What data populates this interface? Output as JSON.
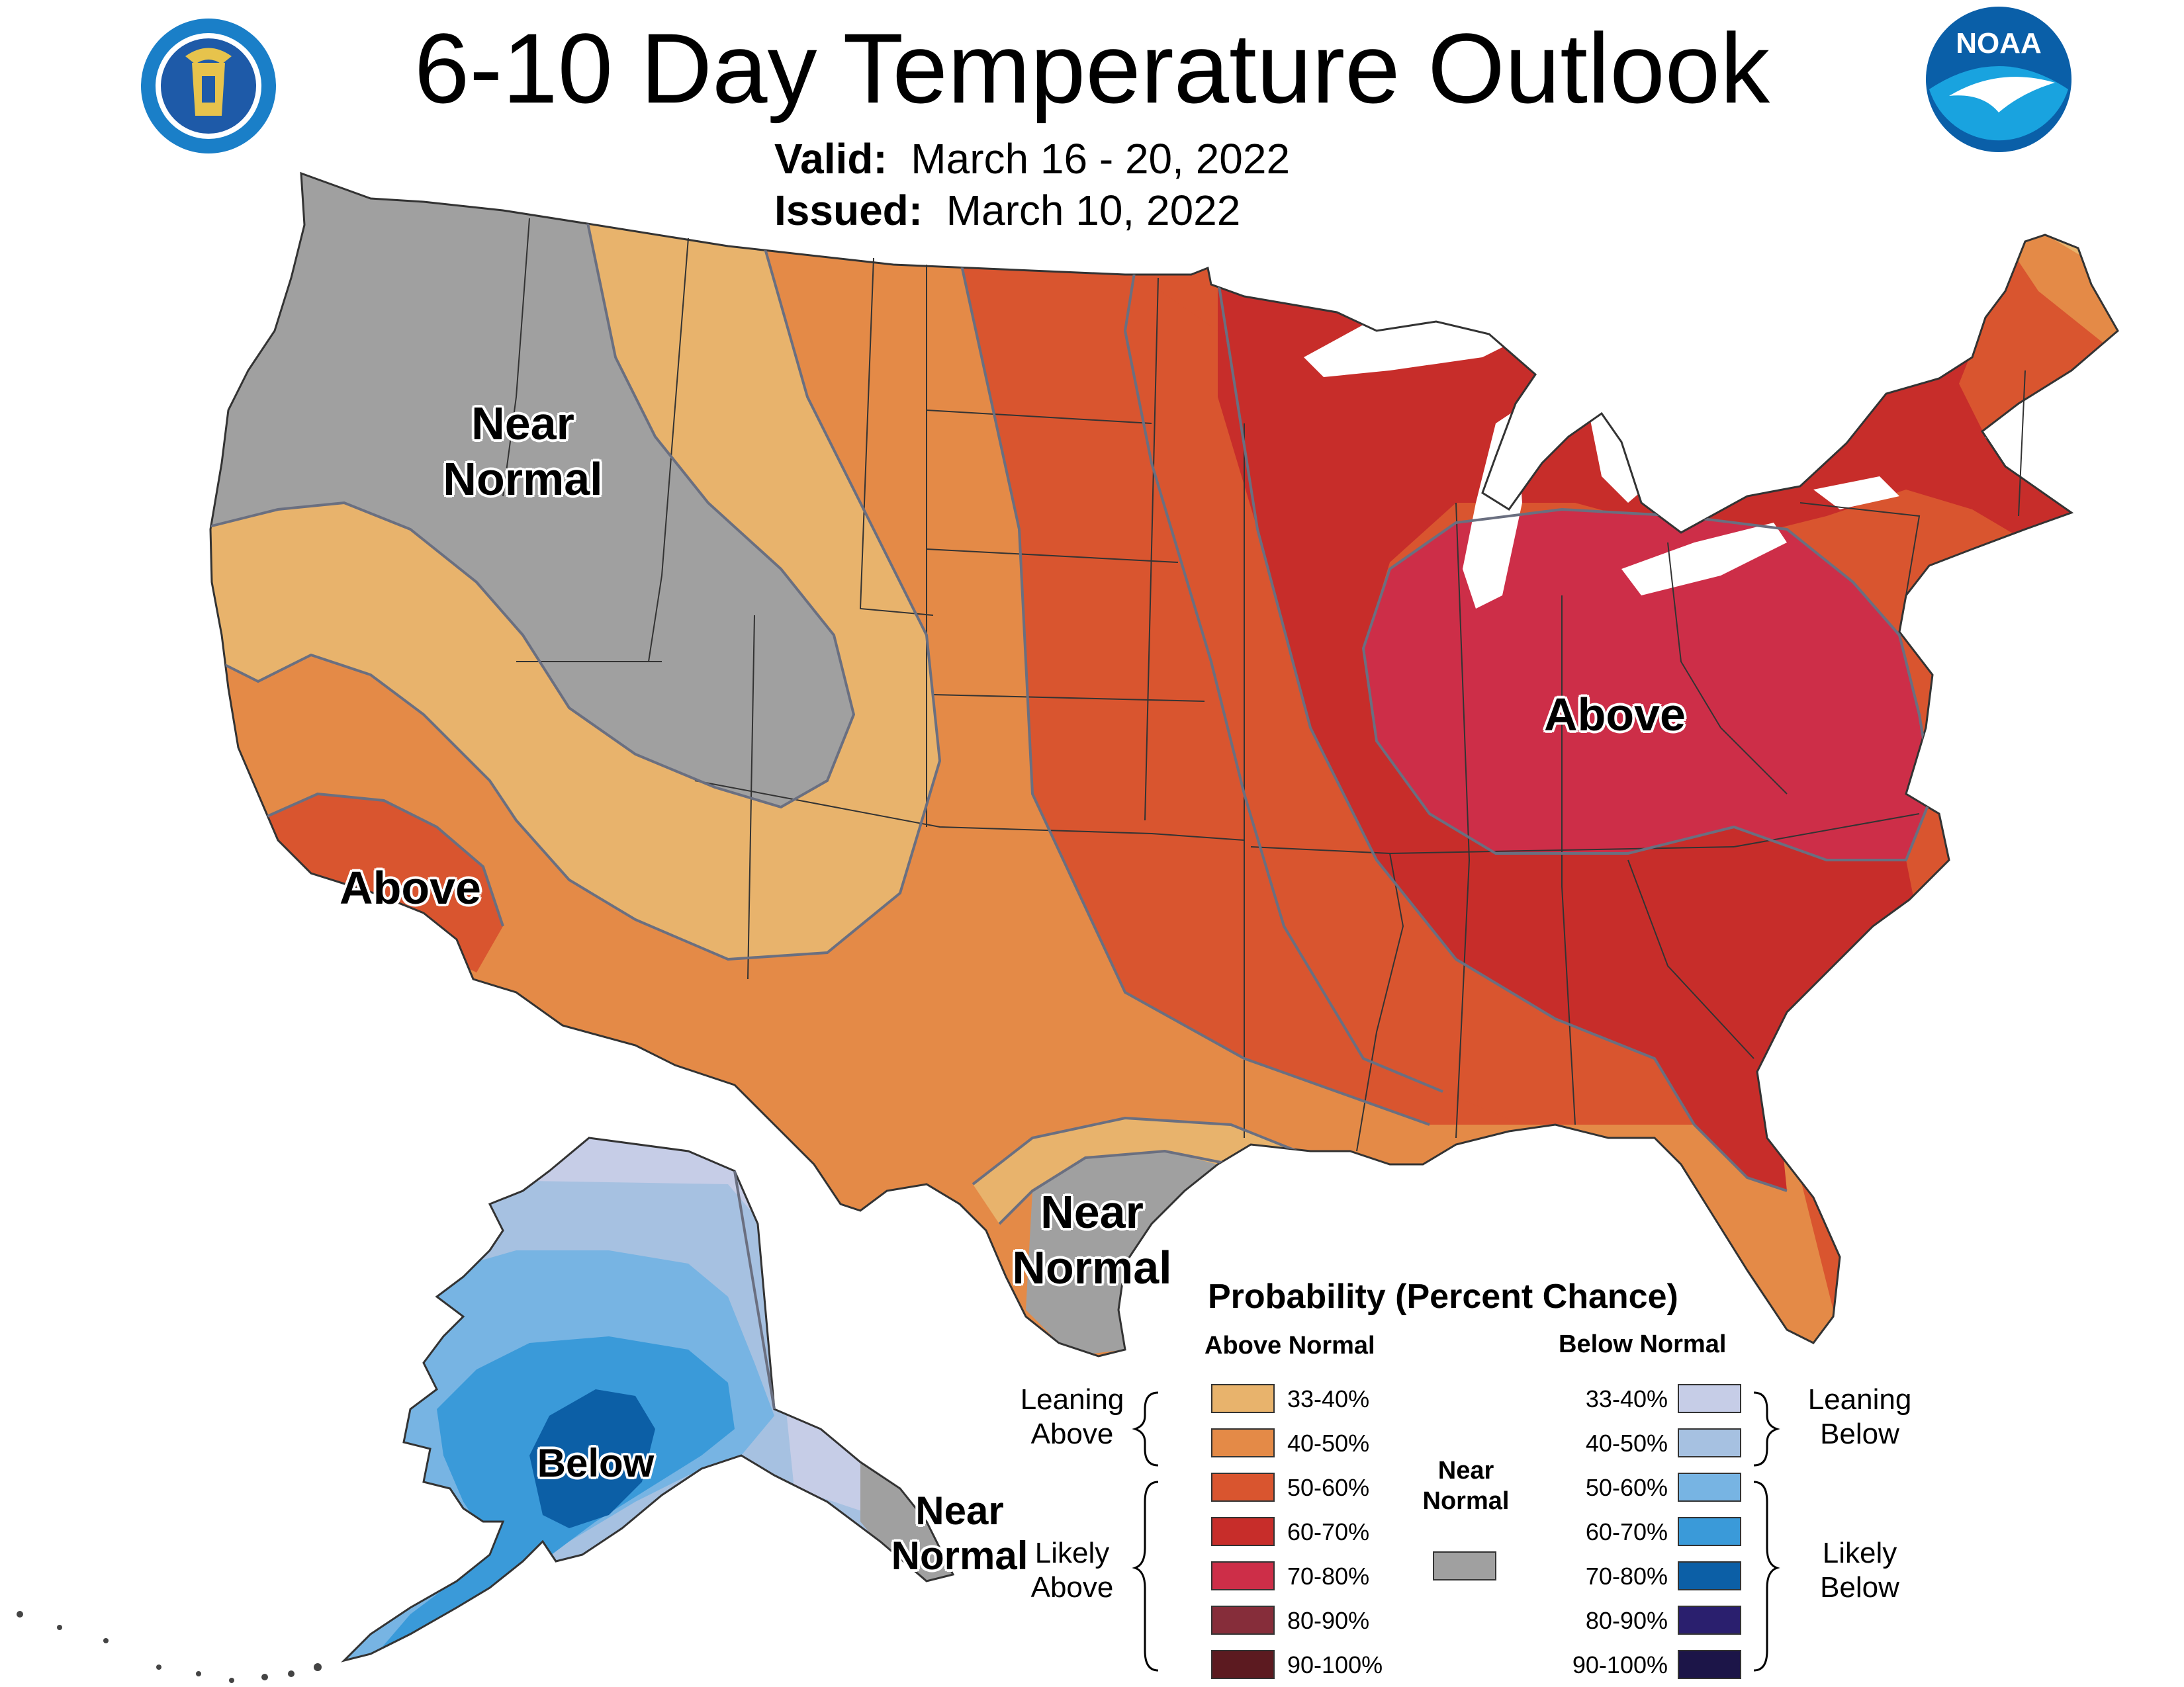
{
  "title": "6-10 Day Temperature Outlook",
  "valid": {
    "label": "Valid:",
    "value": "March 16 - 20, 2022"
  },
  "issued": {
    "label": "Issued:",
    "value": "March 10, 2022"
  },
  "logos": {
    "left": "department-of-commerce-seal",
    "right": "noaa-logo",
    "right_text": "NOAA"
  },
  "map_labels": {
    "nw_near_normal": [
      "Near",
      "Normal"
    ],
    "ca_above": "Above",
    "east_above": "Above",
    "tx_near_normal": [
      "Near",
      "Normal"
    ],
    "ak_below": "Below",
    "ak_near_normal": [
      "Near",
      "Normal"
    ]
  },
  "legend": {
    "title": "Probability (Percent Chance)",
    "above_header": "Above Normal",
    "below_header": "Below Normal",
    "near_header": [
      "Near",
      "Normal"
    ],
    "leaning_above": [
      "Leaning",
      "Above"
    ],
    "likely_above": [
      "Likely",
      "Above"
    ],
    "leaning_below": [
      "Leaning",
      "Below"
    ],
    "likely_below": [
      "Likely",
      "Below"
    ],
    "above": [
      {
        "label": "33-40%",
        "color": "#e8b36c"
      },
      {
        "label": "40-50%",
        "color": "#e48a47"
      },
      {
        "label": "50-60%",
        "color": "#d9552f"
      },
      {
        "label": "60-70%",
        "color": "#c72d2a"
      },
      {
        "label": "70-80%",
        "color": "#cd2e48"
      },
      {
        "label": "80-90%",
        "color": "#862d3a"
      },
      {
        "label": "90-100%",
        "color": "#5c1a20"
      }
    ],
    "near_color": "#a0a0a0",
    "below": [
      {
        "label": "33-40%",
        "color": "#c6cde7"
      },
      {
        "label": "40-50%",
        "color": "#a6c1e1"
      },
      {
        "label": "50-60%",
        "color": "#77b4e3"
      },
      {
        "label": "60-70%",
        "color": "#3a9ad9"
      },
      {
        "label": "70-80%",
        "color": "#0c5fa6"
      },
      {
        "label": "80-90%",
        "color": "#2a1f6e"
      },
      {
        "label": "90-100%",
        "color": "#1c1548"
      }
    ]
  }
}
